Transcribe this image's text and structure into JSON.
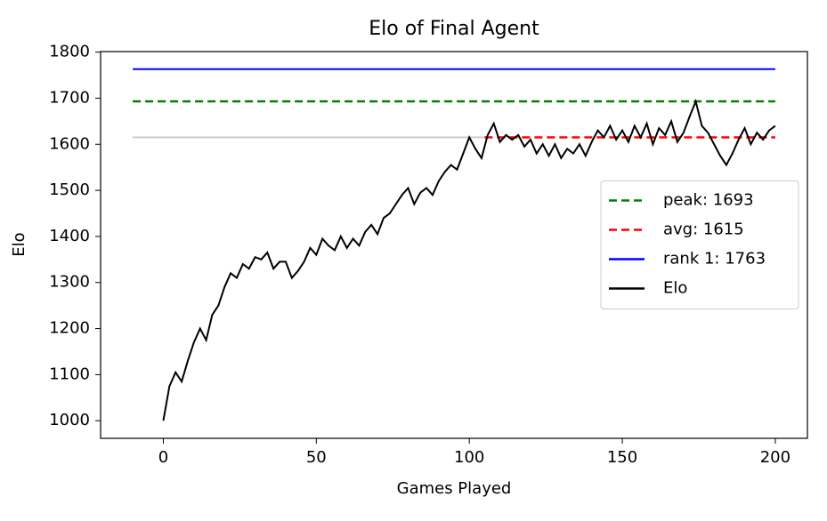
{
  "chart_data": {
    "type": "line",
    "title": "Elo of Final Agent",
    "x_label": "Games Played",
    "y_label": "Elo",
    "xlim": [
      -20.5,
      210.5
    ],
    "ylim": [
      961.85,
      1801.15
    ],
    "xticks": [
      0,
      50,
      100,
      150,
      200
    ],
    "yticks": [
      1000,
      1100,
      1200,
      1300,
      1400,
      1500,
      1600,
      1700,
      1800
    ],
    "legend": "center right",
    "series": [
      {
        "color": "#cccccc",
        "dash": false,
        "x": [
          -10,
          105
        ],
        "values": [
          1615,
          1615
        ]
      },
      {
        "name": "peak: 1693",
        "color": "#008000",
        "dash": true,
        "x": [
          -10,
          200
        ],
        "values": [
          1693,
          1693
        ]
      },
      {
        "name": "avg: 1615",
        "color": "#ff0000",
        "dash": true,
        "x": [
          105,
          200
        ],
        "values": [
          1615,
          1615
        ]
      },
      {
        "name": "rank 1: 1763",
        "color": "#0000ff",
        "dash": false,
        "x": [
          -10,
          200
        ],
        "values": [
          1763,
          1763
        ]
      },
      {
        "name": "Elo",
        "color": "#000000",
        "dash": false,
        "x": [
          0,
          2,
          4,
          6,
          8,
          10,
          12,
          14,
          16,
          18,
          20,
          22,
          24,
          26,
          28,
          30,
          32,
          34,
          36,
          38,
          40,
          42,
          44,
          46,
          48,
          50,
          52,
          54,
          56,
          58,
          60,
          62,
          64,
          66,
          68,
          70,
          72,
          74,
          76,
          78,
          80,
          82,
          84,
          86,
          88,
          90,
          92,
          94,
          96,
          98,
          100,
          102,
          104,
          106,
          108,
          110,
          112,
          114,
          116,
          118,
          120,
          122,
          124,
          126,
          128,
          130,
          132,
          134,
          136,
          138,
          140,
          142,
          144,
          146,
          148,
          150,
          152,
          154,
          156,
          158,
          160,
          162,
          164,
          166,
          168,
          170,
          172,
          174,
          176,
          178,
          180,
          182,
          184,
          186,
          188,
          190,
          192,
          194,
          196,
          198,
          200
        ],
        "values": [
          1000,
          1075,
          1105,
          1085,
          1130,
          1170,
          1200,
          1175,
          1230,
          1250,
          1290,
          1320,
          1310,
          1340,
          1330,
          1355,
          1350,
          1365,
          1330,
          1345,
          1345,
          1310,
          1325,
          1345,
          1375,
          1360,
          1395,
          1380,
          1370,
          1400,
          1375,
          1395,
          1380,
          1410,
          1425,
          1405,
          1440,
          1450,
          1470,
          1490,
          1505,
          1470,
          1495,
          1505,
          1490,
          1520,
          1540,
          1555,
          1545,
          1580,
          1615,
          1590,
          1570,
          1620,
          1645,
          1605,
          1620,
          1610,
          1620,
          1595,
          1610,
          1580,
          1600,
          1575,
          1600,
          1570,
          1590,
          1580,
          1600,
          1575,
          1605,
          1630,
          1615,
          1640,
          1610,
          1630,
          1605,
          1640,
          1615,
          1645,
          1600,
          1635,
          1620,
          1650,
          1605,
          1625,
          1660,
          1693,
          1640,
          1625,
          1600,
          1575,
          1555,
          1580,
          1610,
          1635,
          1600,
          1625,
          1610,
          1630,
          1640
        ]
      }
    ]
  }
}
